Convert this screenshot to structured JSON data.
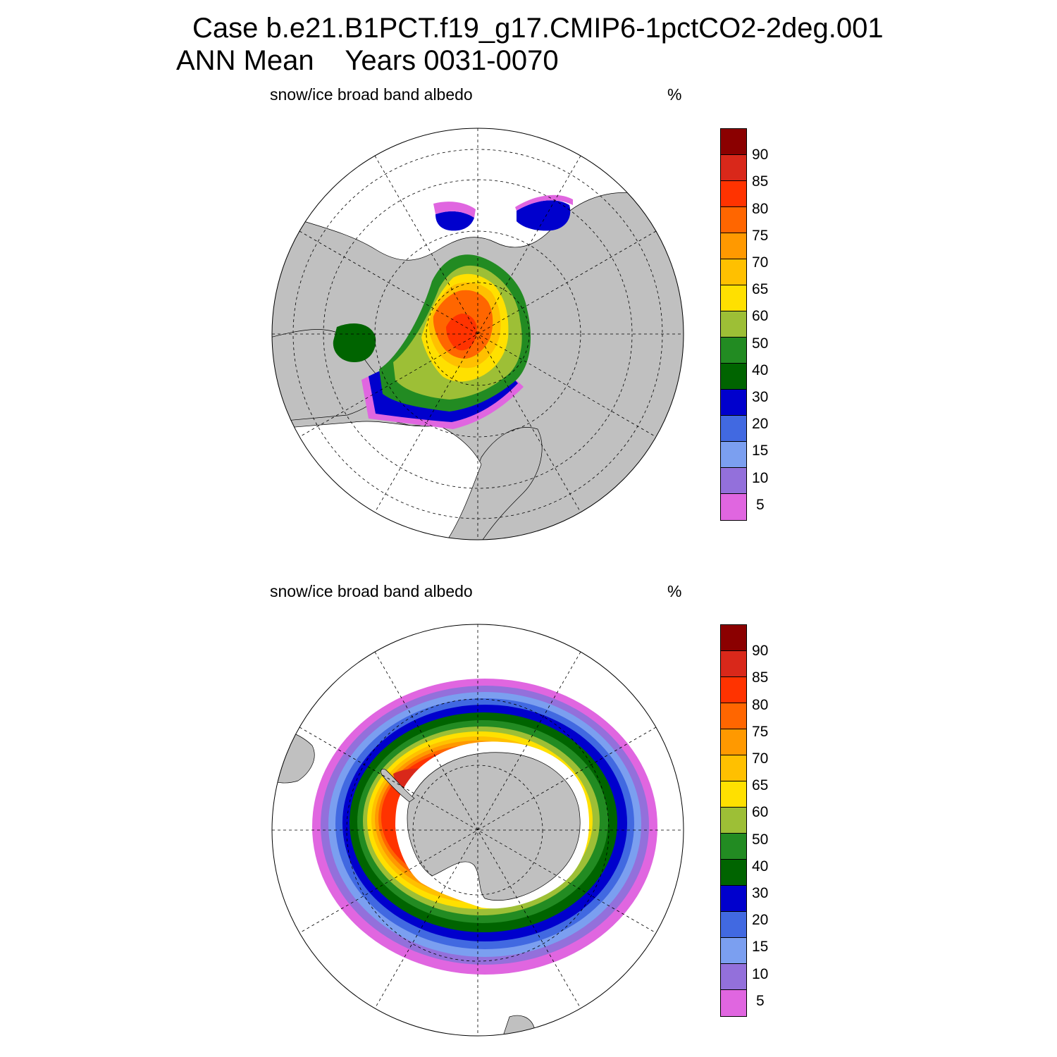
{
  "header": {
    "title_line1": "Case b.e21.B1PCT.f19_g17.CMIP6-1pctCO2-2deg.001",
    "title_line2": "ANN Mean    Years 0031-0070"
  },
  "colors": {
    "land": "#c0c0c0",
    "ocean_no_ice": "#ffffff",
    "graticule": "#000000"
  },
  "colorbar": {
    "colors": [
      "#8b0000",
      "#d9281a",
      "#ff3300",
      "#ff6600",
      "#ff9900",
      "#ffc000",
      "#ffe000",
      "#9dbf36",
      "#228b22",
      "#006400",
      "#0000cd",
      "#4169e1",
      "#7b9ff0",
      "#9370db",
      "#e066e0"
    ],
    "labels": [
      "90",
      "85",
      "80",
      "75",
      "70",
      "65",
      "60",
      "50",
      "40",
      "30",
      "20",
      "15",
      "10",
      "5"
    ]
  },
  "panels": [
    {
      "id": "nh",
      "title": "snow/ice broad band albedo",
      "units": "%",
      "hemisphere": "north"
    },
    {
      "id": "sh",
      "title": "snow/ice broad band albedo",
      "units": "%",
      "hemisphere": "south"
    }
  ]
}
